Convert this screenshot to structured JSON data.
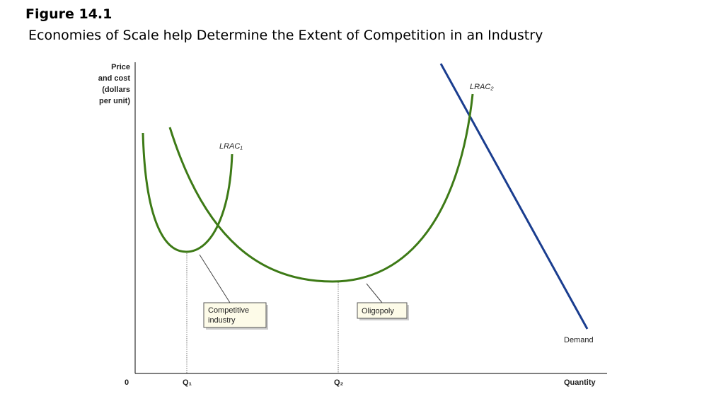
{
  "header": {
    "title": "Figure 14.1",
    "subtitle": "Economies of Scale help Determine the Extent of Competition in an Industry"
  },
  "axes": {
    "y_label": [
      "Price",
      "and cost",
      "(dollars",
      "per unit)"
    ],
    "x_label": "Quantity",
    "origin": "0",
    "x_marks": [
      "Q₁",
      "Q₂"
    ]
  },
  "curves": {
    "lrac1": "LRAC₁",
    "lrac2": "LRAC₂",
    "demand": "Demand"
  },
  "callouts": {
    "competitive": [
      "Competitive",
      "industry"
    ],
    "oligopoly": "Oligopoly"
  }
}
